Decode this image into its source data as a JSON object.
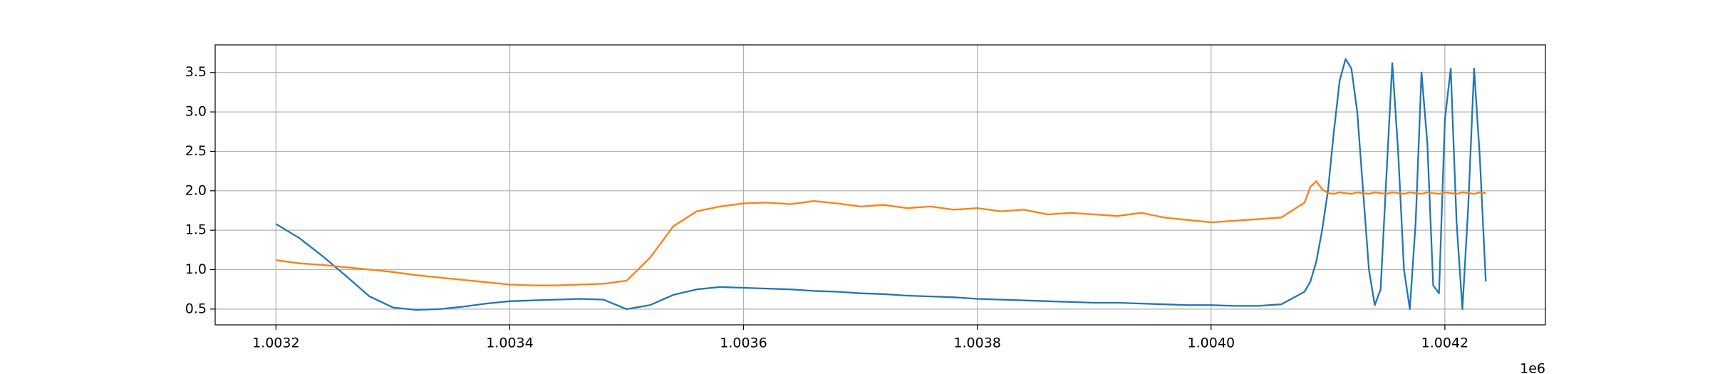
{
  "chart_data": {
    "type": "line",
    "x": [
      1003200,
      1003220,
      1003240,
      1003260,
      1003280,
      1003300,
      1003320,
      1003340,
      1003360,
      1003380,
      1003400,
      1003420,
      1003440,
      1003460,
      1003480,
      1003500,
      1003520,
      1003540,
      1003560,
      1003580,
      1003600,
      1003620,
      1003640,
      1003660,
      1003680,
      1003700,
      1003720,
      1003740,
      1003760,
      1003780,
      1003800,
      1003820,
      1003840,
      1003860,
      1003880,
      1003900,
      1003920,
      1003940,
      1003960,
      1003980,
      1004000,
      1004020,
      1004040,
      1004060,
      1004080,
      1004085,
      1004090,
      1004095,
      1004100,
      1004105,
      1004110,
      1004115,
      1004120,
      1004125,
      1004130,
      1004135,
      1004140,
      1004145,
      1004150,
      1004155,
      1004160,
      1004165,
      1004170,
      1004175,
      1004180,
      1004185,
      1004190,
      1004195,
      1004200,
      1004205,
      1004210,
      1004215,
      1004220,
      1004225,
      1004230,
      1004235
    ],
    "series": [
      {
        "color": "#1f77b4",
        "values": [
          1.58,
          1.4,
          1.17,
          0.92,
          0.66,
          0.52,
          0.49,
          0.5,
          0.53,
          0.57,
          0.6,
          0.61,
          0.62,
          0.63,
          0.62,
          0.5,
          0.55,
          0.68,
          0.75,
          0.78,
          0.77,
          0.76,
          0.75,
          0.73,
          0.72,
          0.7,
          0.69,
          0.67,
          0.66,
          0.65,
          0.63,
          0.62,
          0.61,
          0.6,
          0.59,
          0.58,
          0.58,
          0.57,
          0.56,
          0.55,
          0.55,
          0.54,
          0.54,
          0.56,
          0.72,
          0.85,
          1.1,
          1.5,
          2.0,
          2.75,
          3.4,
          3.67,
          3.55,
          3.0,
          2.0,
          1.0,
          0.55,
          0.75,
          2.2,
          3.62,
          2.5,
          1.0,
          0.5,
          1.6,
          3.5,
          2.6,
          0.8,
          0.7,
          2.9,
          3.55,
          1.6,
          0.5,
          1.8,
          3.55,
          2.4,
          0.85
        ]
      },
      {
        "color": "#ff7f0e",
        "values": [
          1.12,
          1.08,
          1.06,
          1.03,
          1.0,
          0.97,
          0.93,
          0.9,
          0.87,
          0.84,
          0.81,
          0.8,
          0.8,
          0.81,
          0.82,
          0.86,
          1.15,
          1.55,
          1.74,
          1.8,
          1.84,
          1.85,
          1.83,
          1.87,
          1.84,
          1.8,
          1.82,
          1.78,
          1.8,
          1.76,
          1.78,
          1.74,
          1.76,
          1.7,
          1.72,
          1.7,
          1.68,
          1.72,
          1.66,
          1.63,
          1.6,
          1.62,
          1.64,
          1.66,
          1.85,
          2.05,
          2.12,
          2.02,
          1.97,
          1.96,
          1.98,
          1.97,
          1.96,
          1.98,
          1.97,
          1.96,
          1.98,
          1.97,
          1.96,
          1.98,
          1.97,
          1.96,
          1.98,
          1.97,
          1.96,
          1.98,
          1.97,
          1.96,
          1.98,
          1.97,
          1.96,
          1.98,
          1.97,
          1.96,
          1.98,
          1.97
        ]
      }
    ],
    "xlim": [
      1003148,
      1004286
    ],
    "ylim": [
      0.3,
      3.85
    ],
    "xticks": [
      {
        "value": 1003200,
        "label": "1.0032"
      },
      {
        "value": 1003400,
        "label": "1.0034"
      },
      {
        "value": 1003600,
        "label": "1.0036"
      },
      {
        "value": 1003800,
        "label": "1.0038"
      },
      {
        "value": 1004000,
        "label": "1.0040"
      },
      {
        "value": 1004200,
        "label": "1.0042"
      }
    ],
    "x_offset_label": "1e6",
    "yticks": [
      0.5,
      {
        "value": 1,
        "label": "1.0"
      },
      1.5,
      {
        "value": 2,
        "label": "2.0"
      },
      2.5,
      {
        "value": 3,
        "label": "3.0"
      },
      3.5
    ],
    "grid": true
  }
}
